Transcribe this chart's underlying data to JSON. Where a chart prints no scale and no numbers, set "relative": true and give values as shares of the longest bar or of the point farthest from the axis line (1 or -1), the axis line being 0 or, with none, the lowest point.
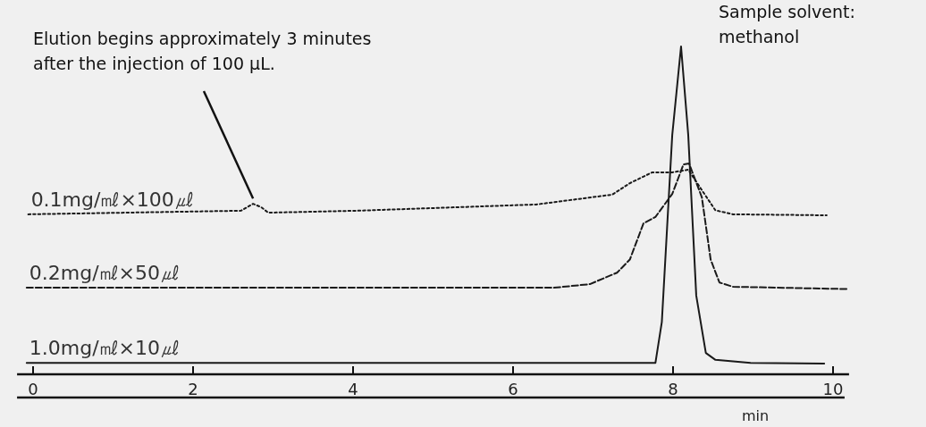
{
  "chart_data": {
    "type": "line",
    "relative": true,
    "xlabel": "min",
    "xlim": [
      -0.2,
      10.2
    ],
    "xticks": [
      0,
      2,
      4,
      6,
      8,
      10
    ],
    "annotations": [
      {
        "text": "Elution begins approximately 3 minutes\nafter the injection of 100 µL.",
        "x": 2.75,
        "y": 0.52
      },
      "Sample solvent:\nmethanol"
    ],
    "series": [
      {
        "name": "0.1mg/㎖×100㎕",
        "color": "#1a1a1a",
        "line_style": "dotted",
        "x": [
          -0.06,
          2.6,
          2.75,
          2.85,
          2.94,
          4.06,
          6.29,
          7.24,
          7.46,
          7.74,
          7.99,
          8.19,
          8.34,
          8.53,
          8.75,
          9.92
        ],
        "values": [
          0.488,
          0.499,
          0.52,
          0.51,
          0.493,
          0.499,
          0.518,
          0.548,
          0.583,
          0.616,
          0.616,
          0.624,
          0.569,
          0.5,
          0.488,
          0.485
        ]
      },
      {
        "name": "0.2mg/㎖×50㎕",
        "color": "#1a1a1a",
        "line_style": "dashed",
        "x": [
          -0.08,
          6.51,
          6.96,
          7.3,
          7.46,
          7.63,
          7.78,
          7.99,
          8.13,
          8.2,
          8.36,
          8.47,
          8.58,
          8.75,
          10.17
        ],
        "values": [
          0.264,
          0.264,
          0.275,
          0.31,
          0.35,
          0.46,
          0.48,
          0.55,
          0.64,
          0.643,
          0.54,
          0.35,
          0.28,
          0.267,
          0.26
        ]
      },
      {
        "name": "1.0mg/㎖×10㎕",
        "color": "#1a1a1a",
        "line_style": "solid",
        "x": [
          -0.08,
          7.78,
          7.86,
          7.99,
          8.1,
          8.19,
          8.29,
          8.41,
          8.53,
          8.97,
          9.89
        ],
        "values": [
          0.035,
          0.035,
          0.16,
          0.73,
          1.0,
          0.73,
          0.24,
          0.065,
          0.044,
          0.035,
          0.033
        ]
      }
    ]
  }
}
